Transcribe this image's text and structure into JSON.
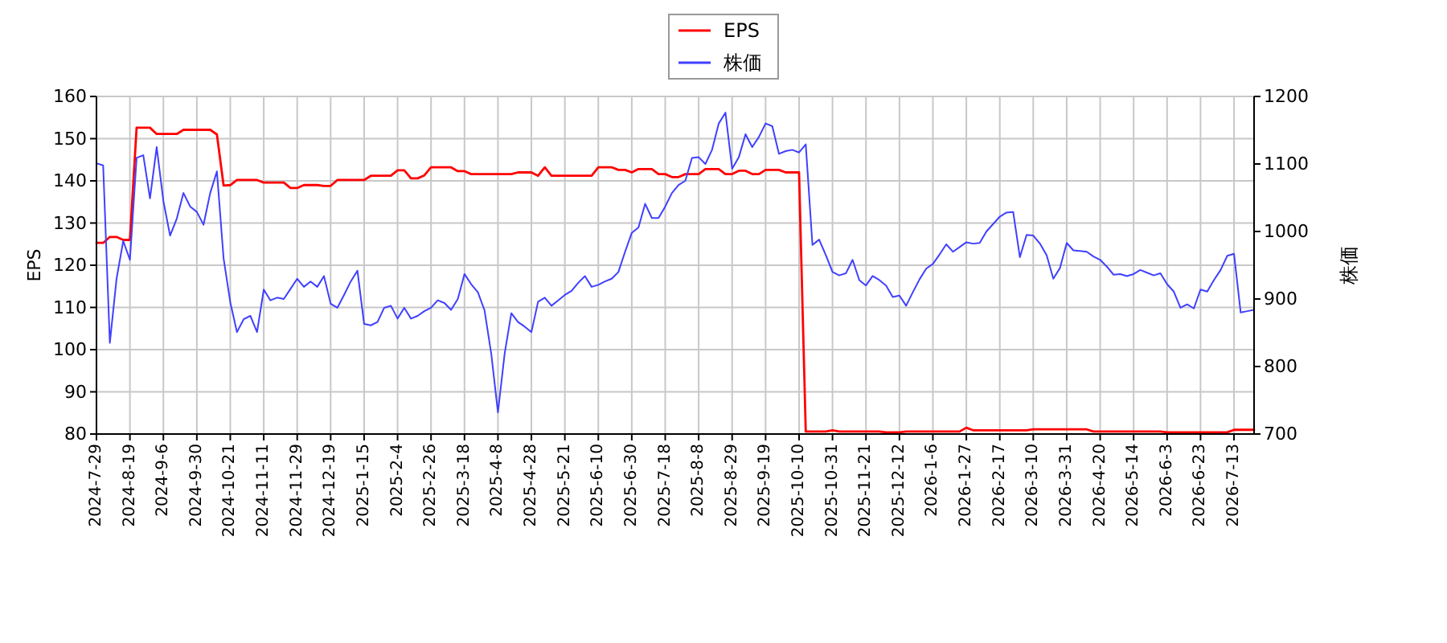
{
  "chart_data": {
    "type": "line",
    "ylabel": "EPS",
    "y2label": "株価",
    "legend": "top",
    "grid": true,
    "categories": [
      "2024-7-29",
      null,
      null,
      null,
      null,
      "2024-8-19",
      null,
      null,
      null,
      null,
      "2024-9-6",
      null,
      null,
      null,
      null,
      "2024-9-30",
      null,
      null,
      null,
      null,
      "2024-10-21",
      null,
      null,
      null,
      null,
      "2024-11-11",
      null,
      null,
      null,
      null,
      "2024-11-29",
      null,
      null,
      null,
      null,
      "2024-12-19",
      null,
      null,
      null,
      null,
      "2025-1-15",
      null,
      null,
      null,
      null,
      "2025-2-4",
      null,
      null,
      null,
      null,
      "2025-2-26",
      null,
      null,
      null,
      null,
      "2025-3-18",
      null,
      null,
      null,
      null,
      "2025-4-8",
      null,
      null,
      null,
      null,
      "2025-4-28",
      null,
      null,
      null,
      null,
      "2025-5-21",
      null,
      null,
      null,
      null,
      "2025-6-10",
      null,
      null,
      null,
      null,
      "2025-6-30",
      null,
      null,
      null,
      null,
      "2025-7-18",
      null,
      null,
      null,
      null,
      "2025-8-8",
      null,
      null,
      null,
      null,
      "2025-8-29",
      null,
      null,
      null,
      null,
      "2025-9-19",
      null,
      null,
      null,
      null,
      "2025-10-10",
      null,
      null,
      null,
      null,
      "2025-10-31",
      null,
      null,
      null,
      null,
      "2025-11-21",
      null,
      null,
      null,
      null,
      "2025-12-12",
      null,
      null,
      null,
      null,
      "2026-1-6",
      null,
      null,
      null,
      null,
      "2026-1-27",
      null,
      null,
      null,
      null,
      "2026-2-17",
      null,
      null,
      null,
      null,
      "2026-3-10",
      null,
      null,
      null,
      null,
      "2026-3-31",
      null,
      null,
      null,
      null,
      "2026-4-20",
      null,
      null,
      null,
      null,
      "2026-5-14",
      null,
      null,
      null,
      null,
      "2026-6-3",
      null,
      null,
      null,
      null,
      "2026-6-23",
      null,
      null,
      null,
      null,
      "2026-7-13",
      null,
      null,
      null
    ],
    "ylim": [
      80,
      160
    ],
    "yticks": [
      80,
      90,
      100,
      110,
      120,
      130,
      140,
      150,
      160
    ],
    "y2lim": [
      700,
      1200
    ],
    "y2ticks": [
      700,
      800,
      900,
      1000,
      1100,
      1200
    ],
    "series": [
      {
        "name": "EPS",
        "color": "#ff0000",
        "values": [
          125.3,
          125.3,
          126.7,
          126.7,
          126.0,
          126.0,
          152.6,
          152.6,
          152.6,
          151.1,
          151.1,
          151.1,
          151.1,
          152.1,
          152.1,
          152.1,
          152.1,
          152.1,
          151.0,
          138.9,
          139.0,
          140.2,
          140.2,
          140.2,
          140.2,
          139.6,
          139.6,
          139.6,
          139.6,
          138.3,
          138.3,
          139.0,
          139.0,
          139.0,
          138.8,
          138.8,
          140.2,
          140.2,
          140.2,
          140.2,
          140.2,
          141.2,
          141.2,
          141.2,
          141.2,
          142.5,
          142.5,
          140.6,
          140.6,
          141.3,
          143.2,
          143.2,
          143.2,
          143.2,
          142.3,
          142.3,
          141.6,
          141.6,
          141.6,
          141.6,
          141.6,
          141.6,
          141.6,
          142.0,
          142.0,
          142.0,
          141.2,
          143.2,
          141.2,
          141.2,
          141.2,
          141.2,
          141.2,
          141.2,
          141.2,
          143.2,
          143.2,
          143.2,
          142.6,
          142.6,
          142.0,
          142.8,
          142.8,
          142.8,
          141.6,
          141.6,
          140.9,
          140.9,
          141.6,
          141.6,
          141.6,
          142.8,
          142.8,
          142.8,
          141.6,
          141.6,
          142.4,
          142.4,
          141.6,
          141.6,
          142.6,
          142.6,
          142.6,
          142.0,
          142.0,
          142.0,
          80.6,
          80.6,
          80.6,
          80.6,
          80.9,
          80.6,
          80.6,
          80.6,
          80.6,
          80.6,
          80.6,
          80.6,
          80.4,
          80.4,
          80.4,
          80.6,
          80.6,
          80.6,
          80.6,
          80.6,
          80.6,
          80.6,
          80.6,
          80.6,
          81.5,
          80.9,
          80.9,
          80.9,
          80.9,
          80.9,
          80.9,
          80.9,
          80.9,
          80.9,
          81.1,
          81.1,
          81.1,
          81.1,
          81.1,
          81.1,
          81.1,
          81.1,
          81.1,
          80.6,
          80.6,
          80.6,
          80.6,
          80.6,
          80.6,
          80.6,
          80.6,
          80.6,
          80.6,
          80.6,
          80.4,
          80.4,
          80.4,
          80.4,
          80.4,
          80.4,
          80.4,
          80.4,
          80.4,
          80.4,
          81.0,
          81.0,
          81.0,
          81.0
        ]
      },
      {
        "name": "株価",
        "color": "#4040ff",
        "axis": "y2",
        "values": [
          1101,
          1098,
          835,
          930,
          986,
          958,
          1109,
          1113,
          1049,
          1125,
          1045,
          994,
          1019,
          1057,
          1037,
          1029,
          1010,
          1057,
          1089,
          960,
          895,
          851,
          870,
          875,
          851,
          914,
          898,
          902,
          900,
          915,
          930,
          918,
          926,
          918,
          934,
          893,
          887,
          906,
          926,
          942,
          863,
          861,
          866,
          887,
          890,
          871,
          887,
          871,
          875,
          882,
          887,
          898,
          894,
          884,
          900,
          937,
          922,
          910,
          883,
          819,
          732,
          819,
          879,
          866,
          859,
          851,
          896,
          902,
          890,
          898,
          906,
          912,
          924,
          934,
          918,
          921,
          926,
          930,
          940,
          970,
          998,
          1006,
          1041,
          1020,
          1020,
          1037,
          1057,
          1069,
          1075,
          1109,
          1110,
          1100,
          1121,
          1160,
          1176,
          1093,
          1110,
          1144,
          1125,
          1140,
          1160,
          1156,
          1115,
          1119,
          1121,
          1117,
          1129,
          980,
          988,
          965,
          940,
          935,
          938,
          958,
          928,
          920,
          934,
          928,
          920,
          903,
          905,
          890,
          910,
          929,
          945,
          952,
          966,
          981,
          970,
          977,
          984,
          982,
          983,
          1000,
          1011,
          1022,
          1028,
          1029,
          962,
          995,
          994,
          982,
          965,
          930,
          946,
          983,
          972,
          971,
          970,
          963,
          958,
          948,
          936,
          937,
          934,
          937,
          943,
          939,
          935,
          938,
          922,
          911,
          887,
          892,
          886,
          914,
          911,
          928,
          943,
          964,
          967,
          880,
          882,
          884
        ]
      }
    ]
  }
}
